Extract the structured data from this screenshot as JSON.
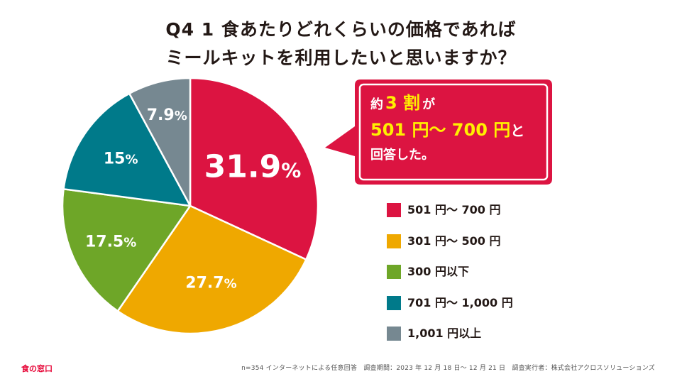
{
  "title": {
    "line1": "Q4 1 食あたりどれくらいの価格であれば",
    "line2": "ミールキットを利用したいと思いますか？"
  },
  "callout": {
    "prefix": "約",
    "highlight": "3 割",
    "suffix": "が",
    "range": "501 円〜 700 円",
    "range_suffix": "と",
    "line3": "回答した。",
    "colors": {
      "background": "#dc1441",
      "text": "#ffffff",
      "highlight": "#fff000"
    }
  },
  "chart_data": {
    "type": "pie",
    "title": "Q4 1 食あたりどれくらいの価格であればミールキットを利用したいと思いますか？",
    "start_angle": "12 o'clock",
    "direction": "clockwise",
    "slices": [
      {
        "label": "501 円〜 700 円",
        "value": 31.9,
        "value_text": "31.9",
        "pct_sign": "%",
        "color": "#dc1441"
      },
      {
        "label": "301 円〜 500 円",
        "value": 27.7,
        "value_text": "27.7",
        "pct_sign": "%",
        "color": "#efa800"
      },
      {
        "label": "300 円以下",
        "value": 17.5,
        "value_text": "17.5",
        "pct_sign": "%",
        "color": "#6ea628"
      },
      {
        "label": "701 円〜 1,000 円",
        "value": 15,
        "value_text": "15",
        "pct_sign": "%",
        "color": "#007a8a"
      },
      {
        "label": "1,001 円以上",
        "value": 7.9,
        "value_text": "7.9",
        "pct_sign": "%",
        "color": "#768891"
      }
    ],
    "legend_position": "right"
  },
  "footer": {
    "brand": "食の窓口",
    "note": "n=354 インターネットによる任意回答　調査期間：2023 年 12 月 18 日〜 12 月 21 日　調査実行者：株式会社アクロスソリューションズ"
  }
}
